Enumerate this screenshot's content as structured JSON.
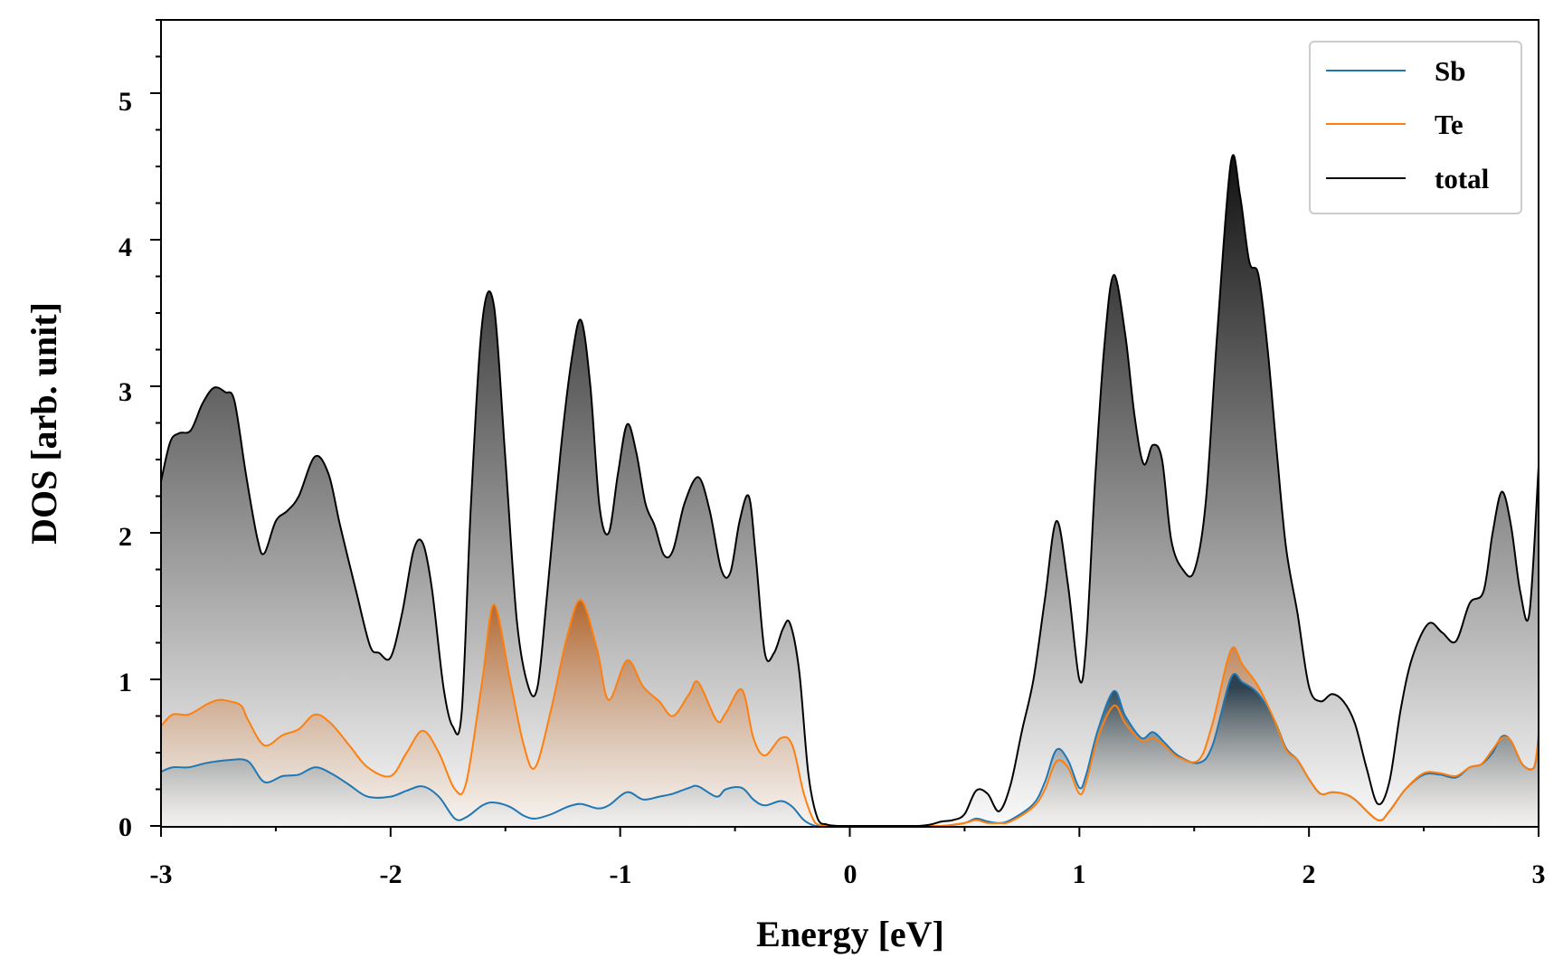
{
  "chart_data": {
    "type": "area",
    "title": "",
    "xlabel": "Energy [eV]",
    "ylabel": "DOS [arb. unit]",
    "xlim": [
      -3,
      3
    ],
    "ylim": [
      0,
      5.5
    ],
    "xticks": [
      -3,
      -2,
      -1,
      0,
      1,
      2,
      3
    ],
    "xtick_labels": [
      "-3",
      "-2",
      "-1",
      "0",
      "1",
      "2",
      "3"
    ],
    "yticks": [
      0,
      1,
      2,
      3,
      4,
      5
    ],
    "ytick_labels": [
      "0",
      "1",
      "2",
      "3",
      "4",
      "5"
    ],
    "legend_position": "top-right",
    "series": [
      {
        "name": "Sb",
        "color": "#1f77b4",
        "fill_color": "#2c4a5e",
        "x": [
          -3.0,
          -2.95,
          -2.88,
          -2.8,
          -2.7,
          -2.62,
          -2.55,
          -2.47,
          -2.4,
          -2.33,
          -2.26,
          -2.18,
          -2.1,
          -2.0,
          -1.93,
          -1.86,
          -1.79,
          -1.72,
          -1.67,
          -1.6,
          -1.55,
          -1.48,
          -1.42,
          -1.37,
          -1.3,
          -1.23,
          -1.17,
          -1.1,
          -1.05,
          -0.97,
          -0.9,
          -0.83,
          -0.77,
          -0.7,
          -0.66,
          -0.58,
          -0.54,
          -0.47,
          -0.42,
          -0.37,
          -0.3,
          -0.25,
          -0.2,
          -0.15,
          -0.1,
          -0.05,
          0.0,
          0.3,
          0.4,
          0.5,
          0.55,
          0.6,
          0.65,
          0.7,
          0.8,
          0.85,
          0.9,
          0.95,
          1.0,
          1.03,
          1.08,
          1.15,
          1.2,
          1.27,
          1.32,
          1.37,
          1.43,
          1.52,
          1.58,
          1.66,
          1.71,
          1.78,
          1.85,
          1.9,
          1.95,
          2.0,
          2.05,
          2.1,
          2.15,
          2.2,
          2.3,
          2.35,
          2.42,
          2.5,
          2.57,
          2.64,
          2.7,
          2.75,
          2.8,
          2.84,
          2.88,
          2.93,
          2.98,
          3.0
        ],
        "values": [
          0.37,
          0.4,
          0.4,
          0.43,
          0.45,
          0.44,
          0.3,
          0.34,
          0.35,
          0.4,
          0.36,
          0.28,
          0.2,
          0.2,
          0.24,
          0.27,
          0.2,
          0.05,
          0.06,
          0.14,
          0.16,
          0.13,
          0.07,
          0.05,
          0.08,
          0.13,
          0.15,
          0.12,
          0.14,
          0.23,
          0.18,
          0.2,
          0.22,
          0.26,
          0.27,
          0.2,
          0.25,
          0.26,
          0.18,
          0.14,
          0.17,
          0.13,
          0.04,
          0.0,
          0.0,
          0.0,
          0.0,
          0.0,
          0.0,
          0.02,
          0.05,
          0.03,
          0.02,
          0.04,
          0.15,
          0.3,
          0.52,
          0.45,
          0.26,
          0.35,
          0.65,
          0.92,
          0.75,
          0.6,
          0.64,
          0.57,
          0.48,
          0.43,
          0.55,
          1.01,
          0.98,
          0.9,
          0.72,
          0.53,
          0.45,
          0.32,
          0.22,
          0.23,
          0.22,
          0.18,
          0.04,
          0.1,
          0.25,
          0.35,
          0.35,
          0.33,
          0.4,
          0.42,
          0.5,
          0.61,
          0.58,
          0.42,
          0.4,
          0.6
        ]
      },
      {
        "name": "Te",
        "color": "#ff7f0e",
        "fill_color": "#b5652a",
        "x": [
          -3.0,
          -2.95,
          -2.88,
          -2.8,
          -2.75,
          -2.7,
          -2.65,
          -2.62,
          -2.55,
          -2.47,
          -2.4,
          -2.33,
          -2.26,
          -2.18,
          -2.1,
          -2.0,
          -1.93,
          -1.86,
          -1.79,
          -1.72,
          -1.67,
          -1.6,
          -1.55,
          -1.48,
          -1.42,
          -1.37,
          -1.3,
          -1.23,
          -1.17,
          -1.1,
          -1.05,
          -0.97,
          -0.9,
          -0.83,
          -0.77,
          -0.7,
          -0.66,
          -0.58,
          -0.54,
          -0.47,
          -0.42,
          -0.37,
          -0.3,
          -0.25,
          -0.2,
          -0.15,
          -0.1,
          -0.05,
          0.0,
          0.3,
          0.4,
          0.5,
          0.55,
          0.6,
          0.65,
          0.7,
          0.8,
          0.85,
          0.9,
          0.95,
          1.0,
          1.03,
          1.08,
          1.15,
          1.2,
          1.27,
          1.32,
          1.37,
          1.43,
          1.52,
          1.58,
          1.66,
          1.71,
          1.78,
          1.85,
          1.9,
          1.95,
          2.0,
          2.05,
          2.1,
          2.15,
          2.2,
          2.3,
          2.35,
          2.42,
          2.5,
          2.57,
          2.64,
          2.7,
          2.75,
          2.8,
          2.84,
          2.88,
          2.93,
          2.98,
          3.0
        ],
        "values": [
          0.68,
          0.76,
          0.76,
          0.83,
          0.86,
          0.85,
          0.82,
          0.72,
          0.55,
          0.62,
          0.66,
          0.76,
          0.7,
          0.55,
          0.4,
          0.34,
          0.5,
          0.65,
          0.5,
          0.25,
          0.3,
          1.0,
          1.51,
          1.0,
          0.55,
          0.4,
          0.8,
          1.3,
          1.54,
          1.2,
          0.86,
          1.13,
          0.95,
          0.85,
          0.75,
          0.9,
          0.98,
          0.72,
          0.77,
          0.93,
          0.6,
          0.48,
          0.6,
          0.55,
          0.22,
          0.02,
          0.0,
          0.0,
          0.0,
          0.0,
          0.0,
          0.02,
          0.04,
          0.02,
          0.02,
          0.03,
          0.13,
          0.25,
          0.44,
          0.4,
          0.22,
          0.3,
          0.6,
          0.82,
          0.7,
          0.58,
          0.6,
          0.55,
          0.47,
          0.45,
          0.7,
          1.2,
          1.1,
          0.95,
          0.72,
          0.52,
          0.45,
          0.32,
          0.22,
          0.23,
          0.22,
          0.18,
          0.04,
          0.1,
          0.25,
          0.36,
          0.36,
          0.34,
          0.4,
          0.42,
          0.52,
          0.6,
          0.58,
          0.42,
          0.4,
          0.63
        ]
      },
      {
        "name": "total",
        "color": "#000000",
        "fill_color": "#000000",
        "x": [
          -3.0,
          -2.96,
          -2.92,
          -2.87,
          -2.82,
          -2.77,
          -2.72,
          -2.68,
          -2.63,
          -2.58,
          -2.55,
          -2.5,
          -2.45,
          -2.4,
          -2.33,
          -2.27,
          -2.22,
          -2.15,
          -2.09,
          -2.05,
          -2.0,
          -1.95,
          -1.9,
          -1.86,
          -1.82,
          -1.77,
          -1.73,
          -1.69,
          -1.65,
          -1.6,
          -1.55,
          -1.5,
          -1.45,
          -1.4,
          -1.36,
          -1.32,
          -1.26,
          -1.21,
          -1.17,
          -1.13,
          -1.09,
          -1.05,
          -1.01,
          -0.97,
          -0.93,
          -0.89,
          -0.85,
          -0.81,
          -0.77,
          -0.72,
          -0.66,
          -0.61,
          -0.56,
          -0.52,
          -0.48,
          -0.44,
          -0.41,
          -0.37,
          -0.33,
          -0.29,
          -0.26,
          -0.22,
          -0.18,
          -0.14,
          -0.1,
          -0.05,
          0.0,
          0.3,
          0.4,
          0.45,
          0.5,
          0.55,
          0.6,
          0.65,
          0.7,
          0.75,
          0.8,
          0.85,
          0.9,
          0.95,
          1.0,
          1.03,
          1.07,
          1.11,
          1.15,
          1.2,
          1.24,
          1.28,
          1.32,
          1.36,
          1.4,
          1.45,
          1.5,
          1.55,
          1.6,
          1.66,
          1.7,
          1.74,
          1.78,
          1.82,
          1.86,
          1.9,
          1.95,
          2.0,
          2.05,
          2.1,
          2.15,
          2.2,
          2.25,
          2.3,
          2.35,
          2.4,
          2.45,
          2.52,
          2.58,
          2.64,
          2.7,
          2.76,
          2.8,
          2.84,
          2.88,
          2.92,
          2.96,
          3.0
        ],
        "values": [
          2.35,
          2.62,
          2.68,
          2.7,
          2.88,
          2.99,
          2.96,
          2.9,
          2.4,
          1.96,
          1.86,
          2.08,
          2.15,
          2.25,
          2.52,
          2.4,
          2.05,
          1.6,
          1.23,
          1.18,
          1.15,
          1.45,
          1.88,
          1.93,
          1.62,
          0.95,
          0.68,
          0.78,
          2.2,
          3.45,
          3.55,
          2.5,
          1.4,
          0.95,
          0.95,
          1.55,
          2.55,
          3.2,
          3.45,
          3.0,
          2.18,
          2.0,
          2.4,
          2.74,
          2.55,
          2.2,
          2.05,
          1.85,
          1.88,
          2.2,
          2.38,
          2.15,
          1.75,
          1.73,
          2.08,
          2.25,
          1.85,
          1.18,
          1.18,
          1.35,
          1.38,
          1.05,
          0.35,
          0.05,
          0.01,
          0.0,
          0.0,
          0.0,
          0.03,
          0.04,
          0.08,
          0.24,
          0.22,
          0.1,
          0.28,
          0.65,
          1.0,
          1.55,
          2.08,
          1.65,
          1.0,
          1.25,
          2.4,
          3.3,
          3.76,
          3.35,
          2.8,
          2.47,
          2.6,
          2.5,
          1.95,
          1.75,
          1.74,
          2.2,
          3.35,
          4.53,
          4.3,
          3.85,
          3.76,
          3.25,
          2.55,
          1.9,
          1.45,
          0.95,
          0.85,
          0.9,
          0.85,
          0.7,
          0.4,
          0.15,
          0.3,
          0.8,
          1.15,
          1.38,
          1.32,
          1.26,
          1.52,
          1.6,
          2.0,
          2.28,
          2.05,
          1.6,
          1.45,
          2.45
        ]
      }
    ]
  }
}
